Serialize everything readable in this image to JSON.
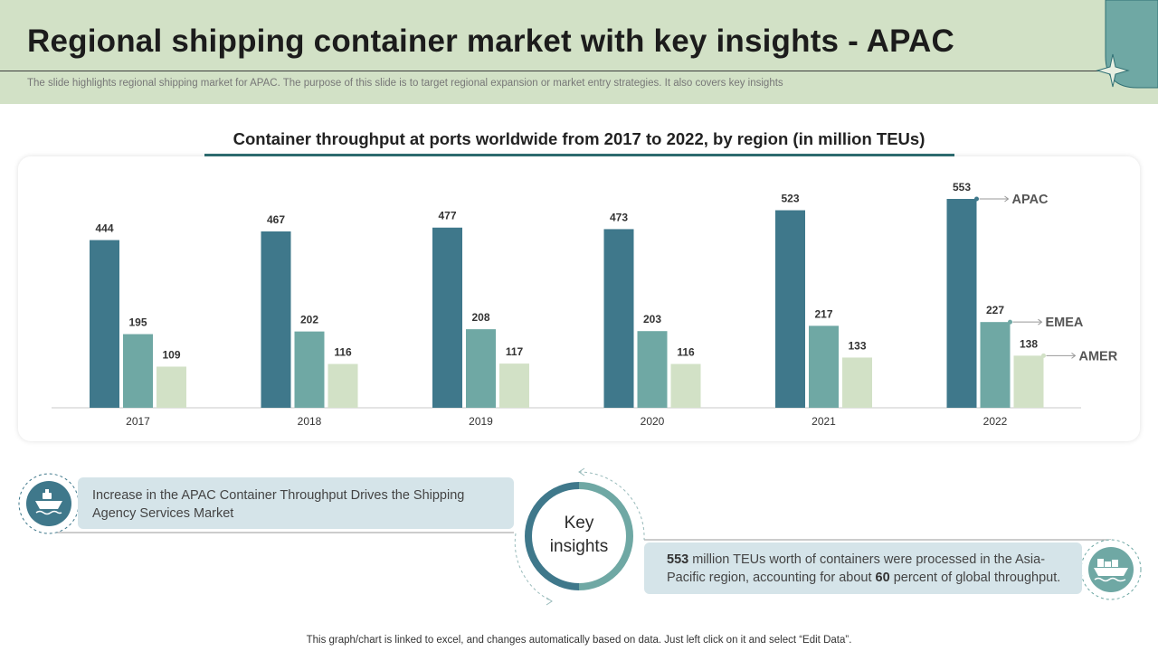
{
  "slide": {
    "title": "Regional shipping container market with key insights - APAC",
    "subtitle": "The slide highlights regional shipping market for APAC.  The purpose of this slide is to target regional expansion or market entry strategies. It also covers key insights"
  },
  "colors": {
    "apac": "#3f788b",
    "emea": "#6fa8a4",
    "amer": "#d2e1c6",
    "header_bg": "#d2e1c6",
    "accent": "#2f6f73"
  },
  "chart_data": {
    "type": "bar",
    "title": "Container throughput at ports worldwide from 2017 to 2022, by region (in million TEUs)",
    "categories": [
      "2017",
      "2018",
      "2019",
      "2020",
      "2021",
      "2022"
    ],
    "series": [
      {
        "name": "APAC",
        "values": [
          444,
          467,
          477,
          473,
          523,
          553
        ]
      },
      {
        "name": "EMEA",
        "values": [
          195,
          202,
          208,
          203,
          217,
          227
        ]
      },
      {
        "name": "AMER",
        "values": [
          109,
          116,
          117,
          116,
          133,
          138
        ]
      }
    ],
    "xlabel": "",
    "ylabel": "",
    "ylim": [
      0,
      600
    ],
    "grid": false,
    "legend": "inline-right"
  },
  "insights": {
    "center_label": "Key insights",
    "left_text": "Increase in the APAC Container Throughput Drives the Shipping Agency Services Market",
    "right_value": "553",
    "right_text_1": " million TEUs worth of containers were processed in the Asia-Pacific region, accounting for about ",
    "right_percent": "60",
    "right_text_2": " percent of global throughput.",
    "left_icon": "ship-icon",
    "right_icon": "cargo-ship-icon"
  },
  "footer": "This graph/chart is linked to excel,  and changes automatically based on data. Just left click on it and select “Edit Data”."
}
